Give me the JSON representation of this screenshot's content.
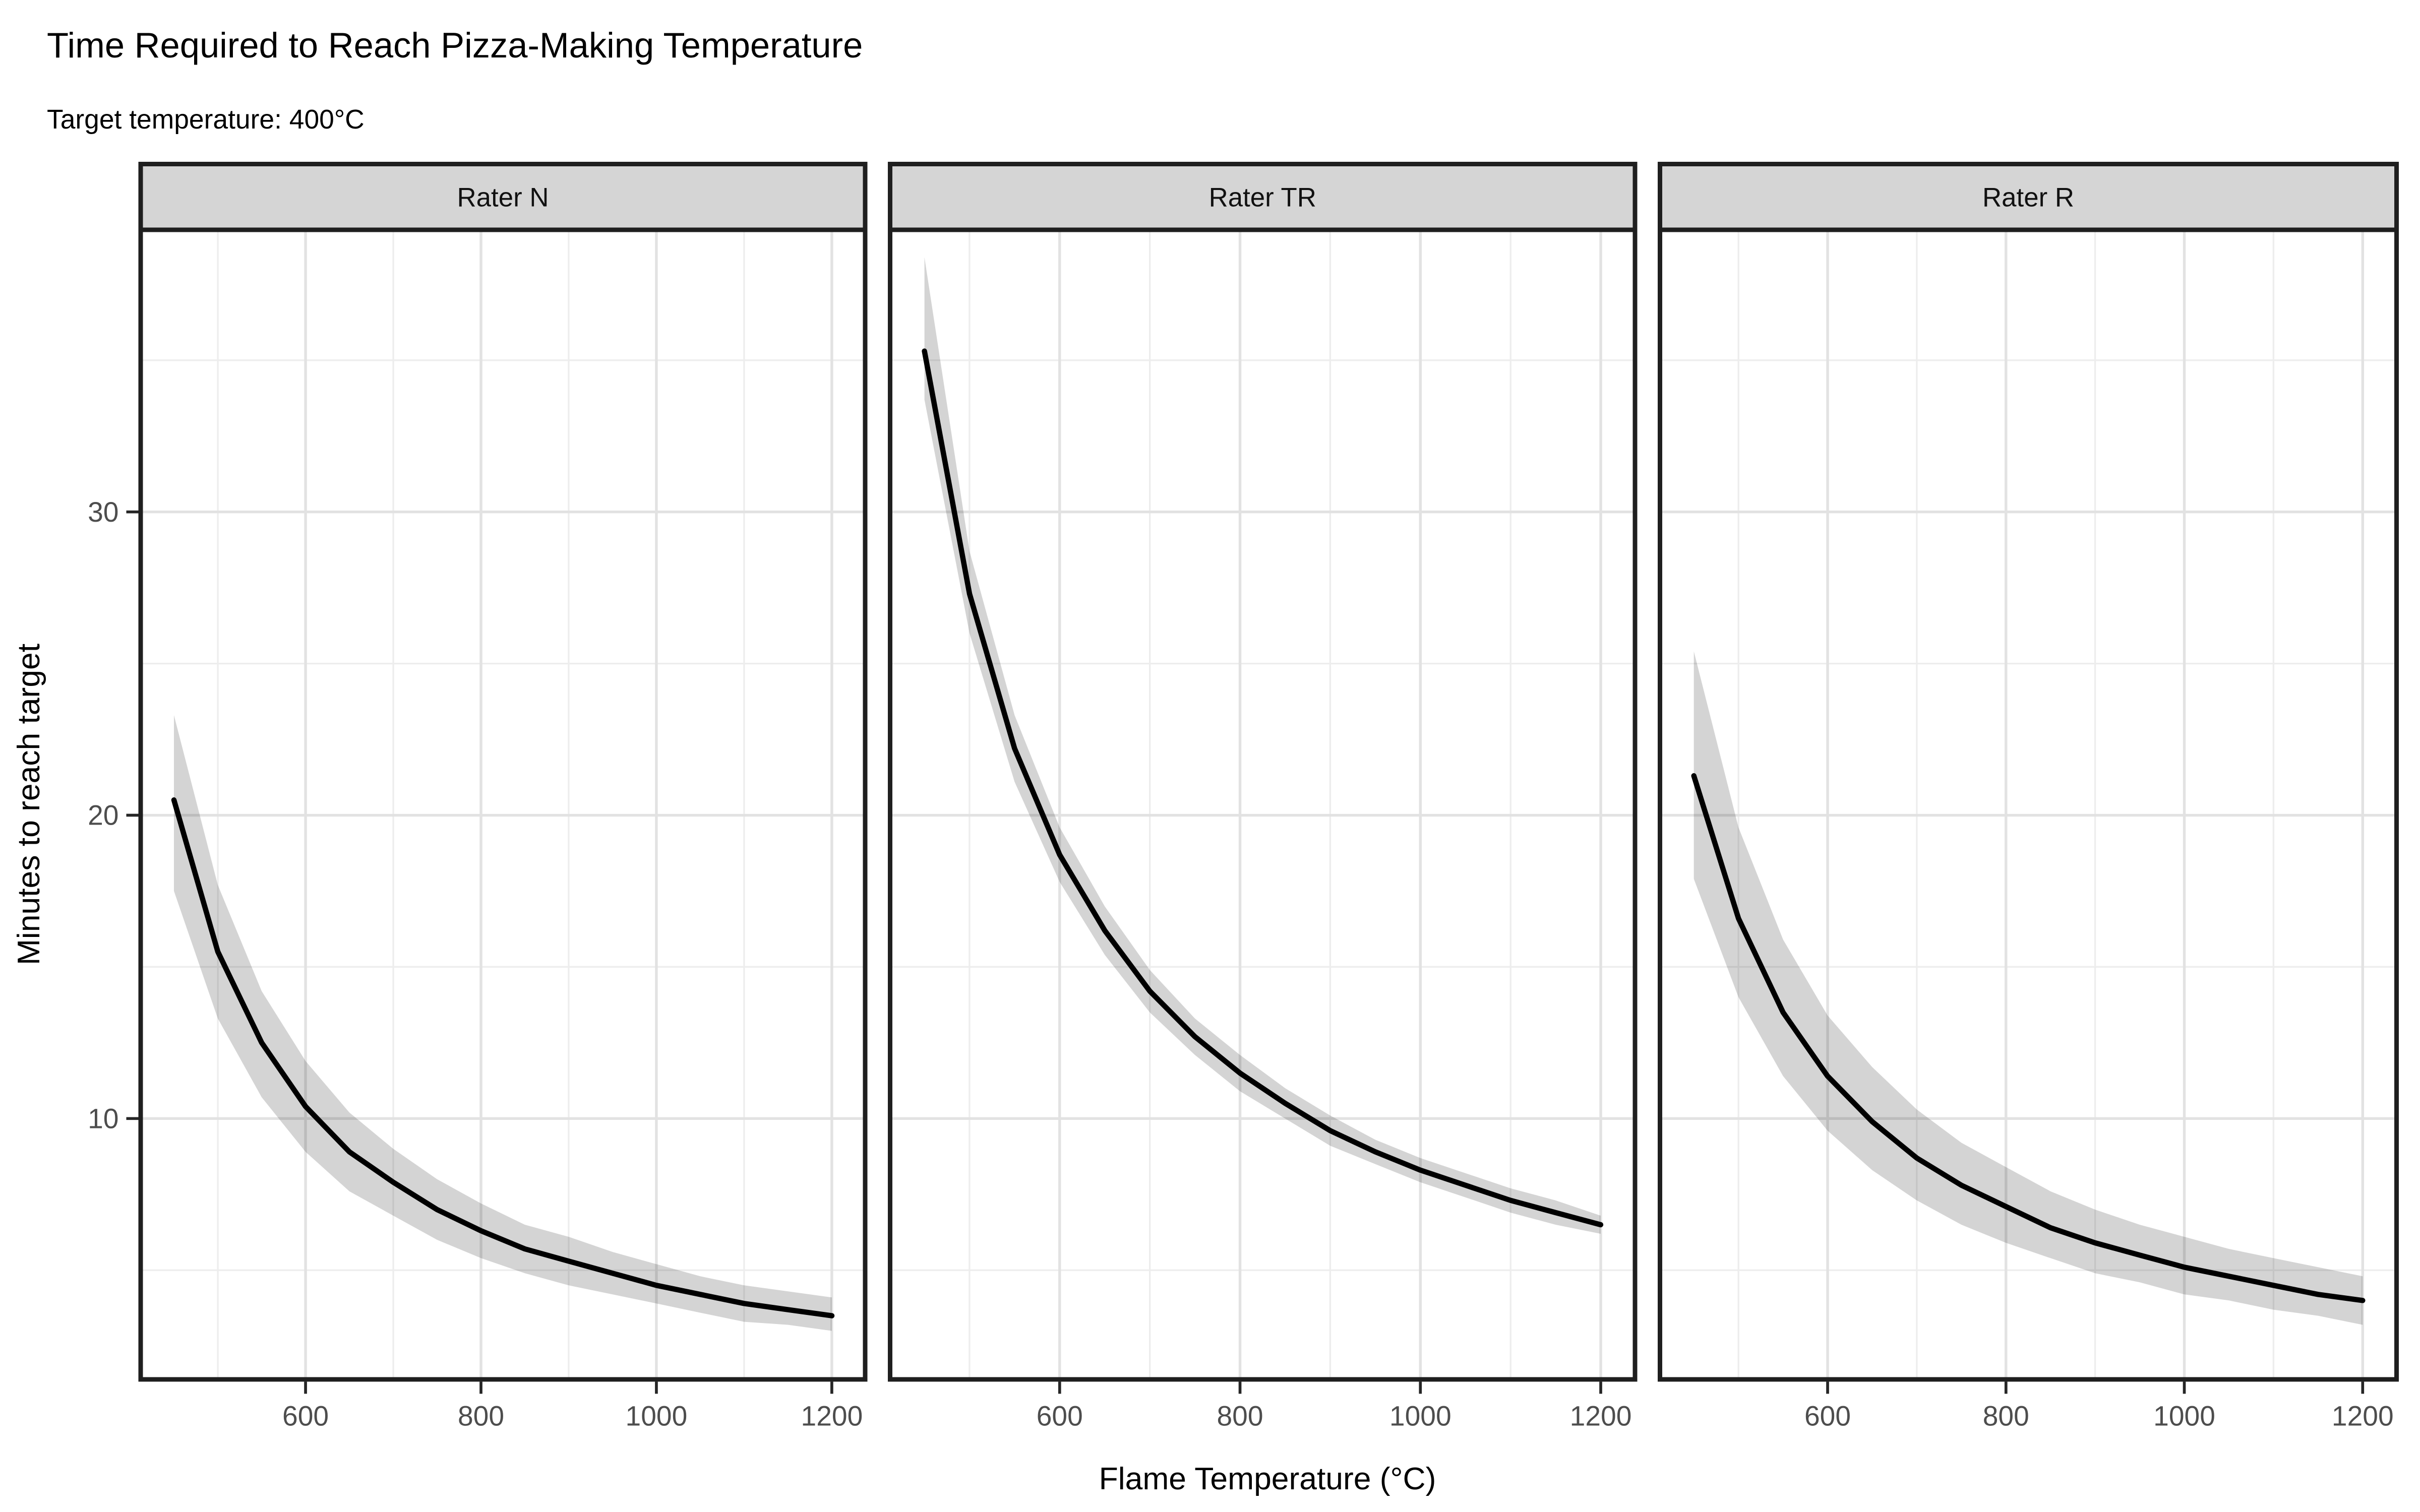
{
  "header": {
    "title": "Time Required to Reach Pizza-Making Temperature",
    "subtitle": "Target temperature: 400°C"
  },
  "chart_data": {
    "type": "line",
    "title": "Time Required to Reach Pizza-Making Temperature",
    "subtitle": "Target temperature: 400°C",
    "xlabel": "Flame Temperature (°C)",
    "ylabel": "Minutes to reach target",
    "legend": "none",
    "grid": "on",
    "facet_variable": "rater",
    "x": [
      450,
      500,
      550,
      600,
      650,
      700,
      750,
      800,
      850,
      900,
      950,
      1000,
      1050,
      1100,
      1150,
      1200
    ],
    "facets": [
      {
        "label": "Rater N",
        "values": [
          20.5,
          15.5,
          12.5,
          10.4,
          8.9,
          7.9,
          7.0,
          6.3,
          5.7,
          5.3,
          4.9,
          4.5,
          4.2,
          3.9,
          3.7,
          3.5
        ],
        "ci_lower": [
          17.5,
          13.3,
          10.7,
          8.9,
          7.6,
          6.8,
          6.0,
          5.4,
          4.9,
          4.5,
          4.2,
          3.9,
          3.6,
          3.3,
          3.2,
          3.0
        ],
        "ci_upper": [
          23.3,
          17.7,
          14.2,
          11.9,
          10.2,
          9.0,
          8.0,
          7.2,
          6.5,
          6.1,
          5.6,
          5.2,
          4.8,
          4.5,
          4.3,
          4.1
        ]
      },
      {
        "label": "Rater TR",
        "values": [
          35.3,
          27.3,
          22.2,
          18.7,
          16.2,
          14.2,
          12.7,
          11.5,
          10.5,
          9.6,
          8.9,
          8.3,
          7.8,
          7.3,
          6.9,
          6.5
        ],
        "ci_lower": [
          33.7,
          26.0,
          21.1,
          17.8,
          15.4,
          13.5,
          12.1,
          10.9,
          10.0,
          9.1,
          8.5,
          7.9,
          7.4,
          6.9,
          6.5,
          6.2
        ],
        "ci_upper": [
          38.4,
          28.7,
          23.3,
          19.6,
          17.0,
          14.9,
          13.3,
          12.1,
          11.0,
          10.1,
          9.3,
          8.7,
          8.2,
          7.7,
          7.3,
          6.8
        ]
      },
      {
        "label": "Rater R",
        "values": [
          21.3,
          16.6,
          13.5,
          11.4,
          9.9,
          8.7,
          7.8,
          7.1,
          6.4,
          5.9,
          5.5,
          5.1,
          4.8,
          4.5,
          4.2,
          4.0
        ],
        "ci_lower": [
          17.9,
          14.0,
          11.4,
          9.6,
          8.3,
          7.3,
          6.5,
          5.9,
          5.4,
          4.9,
          4.6,
          4.2,
          4.0,
          3.7,
          3.5,
          3.2
        ],
        "ci_upper": [
          25.4,
          19.6,
          15.9,
          13.4,
          11.7,
          10.3,
          9.2,
          8.4,
          7.6,
          7.0,
          6.5,
          6.1,
          5.7,
          5.4,
          5.1,
          4.8
        ]
      }
    ],
    "x_ticks": [
      {
        "value": 600,
        "label": "600"
      },
      {
        "value": 800,
        "label": "800"
      },
      {
        "value": 1000,
        "label": "1000"
      },
      {
        "value": 1200,
        "label": "1200"
      }
    ],
    "y_ticks": [
      {
        "value": 10,
        "label": "10"
      },
      {
        "value": 20,
        "label": "20"
      },
      {
        "value": 30,
        "label": "30"
      }
    ],
    "x_minor": [
      500,
      700,
      900,
      1100
    ],
    "y_minor": [
      5,
      15,
      25,
      35
    ],
    "xlim": [
      412,
      1238
    ],
    "ylim": [
      1.4,
      39.3
    ],
    "colors": {
      "line": "#000000",
      "ribbon": "#000000",
      "ribbon_opacity": 0.17,
      "strip_bg": "#d5d5d5",
      "strip_border": "#1f1f1f",
      "panel_border": "#1f1f1f",
      "grid_major": "#e2e2e2",
      "grid_minor": "#ededed",
      "tick_mark": "#262626",
      "tick_label": "#4d4d4d",
      "text": "#000000",
      "background": "#ffffff"
    }
  }
}
